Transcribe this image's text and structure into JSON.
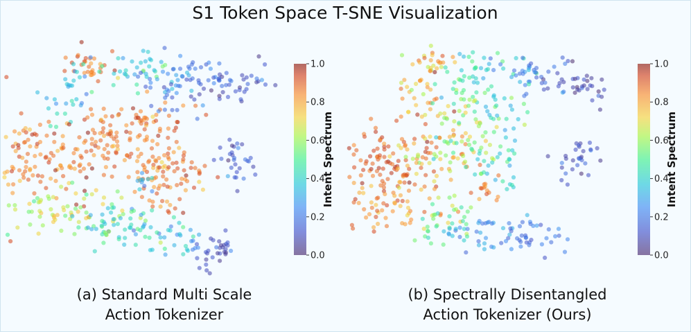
{
  "figure": {
    "title": "S1 Token Space T-SNE Visualization",
    "background": "#f5fbff",
    "border_color": "#cfe3ef"
  },
  "chart_data": [
    {
      "type": "scatter",
      "caption": [
        "(a) Standard Multi Scale",
        "Action Tokenizer"
      ],
      "xlabel": "",
      "ylabel": "",
      "axes_visible": false,
      "grid": false,
      "colorbar": {
        "label": "Intent Spectrum",
        "range": [
          0.0,
          1.0
        ],
        "ticks": [
          "0.0",
          "0.2",
          "0.4",
          "0.6",
          "0.8",
          "1.0"
        ],
        "colormap": "turbo"
      },
      "point_opacity": 0.55,
      "clusters": [
        {
          "cx": 0.13,
          "cy": 0.1,
          "sx": 0.06,
          "sy": 0.03,
          "n": 30,
          "mean": 0.88,
          "sd": 0.05
        },
        {
          "cx": 0.28,
          "cy": 0.12,
          "sx": 0.07,
          "sy": 0.04,
          "n": 30,
          "mean": 0.42,
          "sd": 0.12
        },
        {
          "cx": 0.48,
          "cy": 0.13,
          "sx": 0.07,
          "sy": 0.04,
          "n": 35,
          "mean": 0.2,
          "sd": 0.06
        },
        {
          "cx": 0.62,
          "cy": 0.18,
          "sx": 0.06,
          "sy": 0.04,
          "n": 35,
          "mean": 0.12,
          "sd": 0.05
        },
        {
          "cx": 0.38,
          "cy": 0.17,
          "sx": 0.06,
          "sy": 0.05,
          "n": 25,
          "mean": 0.3,
          "sd": 0.08
        },
        {
          "cx": 0.06,
          "cy": 0.22,
          "sx": 0.05,
          "sy": 0.06,
          "n": 30,
          "mean": 0.36,
          "sd": 0.07
        },
        {
          "cx": 0.3,
          "cy": 0.33,
          "sx": 0.1,
          "sy": 0.05,
          "n": 50,
          "mean": 0.88,
          "sd": 0.05
        },
        {
          "cx": 0.42,
          "cy": 0.25,
          "sx": 0.04,
          "sy": 0.04,
          "n": 15,
          "mean": 0.15,
          "sd": 0.05
        },
        {
          "cx": -0.02,
          "cy": 0.5,
          "sx": 0.14,
          "sy": 0.1,
          "n": 140,
          "mean": 0.86,
          "sd": 0.07
        },
        {
          "cx": 0.17,
          "cy": 0.45,
          "sx": 0.06,
          "sy": 0.05,
          "n": 30,
          "mean": 0.88,
          "sd": 0.05
        },
        {
          "cx": 0.3,
          "cy": 0.46,
          "sx": 0.07,
          "sy": 0.05,
          "n": 35,
          "mean": 0.86,
          "sd": 0.05
        },
        {
          "cx": 0.36,
          "cy": 0.56,
          "sx": 0.06,
          "sy": 0.05,
          "n": 30,
          "mean": 0.85,
          "sd": 0.06
        },
        {
          "cx": 0.47,
          "cy": 0.55,
          "sx": 0.04,
          "sy": 0.04,
          "n": 20,
          "mean": 0.88,
          "sd": 0.05
        },
        {
          "cx": 0.62,
          "cy": 0.52,
          "sx": 0.04,
          "sy": 0.05,
          "n": 30,
          "mean": 0.12,
          "sd": 0.05
        },
        {
          "cx": 0.02,
          "cy": 0.72,
          "sx": 0.1,
          "sy": 0.06,
          "n": 60,
          "mean": 0.62,
          "sd": 0.07
        },
        {
          "cx": 0.17,
          "cy": 0.78,
          "sx": 0.07,
          "sy": 0.05,
          "n": 35,
          "mean": 0.45,
          "sd": 0.12
        },
        {
          "cx": 0.3,
          "cy": 0.8,
          "sx": 0.07,
          "sy": 0.04,
          "n": 35,
          "mean": 0.4,
          "sd": 0.12
        },
        {
          "cx": 0.44,
          "cy": 0.84,
          "sx": 0.05,
          "sy": 0.04,
          "n": 25,
          "mean": 0.32,
          "sd": 0.08
        },
        {
          "cx": 0.55,
          "cy": 0.88,
          "sx": 0.04,
          "sy": 0.04,
          "n": 30,
          "mean": 0.08,
          "sd": 0.05
        },
        {
          "cx": 0.36,
          "cy": 0.66,
          "sx": 0.06,
          "sy": 0.05,
          "n": 25,
          "mean": 0.88,
          "sd": 0.05
        },
        {
          "cx": 0.3,
          "cy": 0.6,
          "sx": 0.03,
          "sy": 0.02,
          "n": 10,
          "mean": 0.3,
          "sd": 0.05
        }
      ]
    },
    {
      "type": "scatter",
      "caption": [
        "(b) Spectrally Disentangled",
        "Action Tokenizer (Ours)"
      ],
      "xlabel": "",
      "ylabel": "",
      "axes_visible": false,
      "grid": false,
      "colorbar": {
        "label": "Intent Spectrum",
        "range": [
          0.0,
          1.0
        ],
        "ticks": [
          "0.0",
          "0.2",
          "0.4",
          "0.6",
          "0.8",
          "1.0"
        ],
        "colormap": "turbo"
      },
      "point_opacity": 0.55,
      "clusters": [
        {
          "cx": 0.14,
          "cy": 0.1,
          "sx": 0.05,
          "sy": 0.03,
          "n": 25,
          "mean": 0.78,
          "sd": 0.12
        },
        {
          "cx": 0.3,
          "cy": 0.11,
          "sx": 0.06,
          "sy": 0.04,
          "n": 30,
          "mean": 0.4,
          "sd": 0.05
        },
        {
          "cx": 0.45,
          "cy": 0.14,
          "sx": 0.06,
          "sy": 0.04,
          "n": 35,
          "mean": 0.22,
          "sd": 0.05
        },
        {
          "cx": 0.62,
          "cy": 0.18,
          "sx": 0.05,
          "sy": 0.04,
          "n": 35,
          "mean": 0.08,
          "sd": 0.05
        },
        {
          "cx": 0.08,
          "cy": 0.22,
          "sx": 0.05,
          "sy": 0.06,
          "n": 30,
          "mean": 0.78,
          "sd": 0.08
        },
        {
          "cx": 0.22,
          "cy": 0.2,
          "sx": 0.05,
          "sy": 0.05,
          "n": 20,
          "mean": 0.5,
          "sd": 0.06
        },
        {
          "cx": 0.25,
          "cy": 0.33,
          "sx": 0.08,
          "sy": 0.05,
          "n": 35,
          "mean": 0.62,
          "sd": 0.1
        },
        {
          "cx": 0.38,
          "cy": 0.28,
          "sx": 0.05,
          "sy": 0.04,
          "n": 20,
          "mean": 0.4,
          "sd": 0.08
        },
        {
          "cx": -0.03,
          "cy": 0.5,
          "sx": 0.1,
          "sy": 0.09,
          "n": 110,
          "mean": 0.9,
          "sd": 0.05
        },
        {
          "cx": 0.12,
          "cy": 0.48,
          "sx": 0.06,
          "sy": 0.06,
          "n": 40,
          "mean": 0.75,
          "sd": 0.08
        },
        {
          "cx": 0.25,
          "cy": 0.45,
          "sx": 0.06,
          "sy": 0.05,
          "n": 35,
          "mean": 0.55,
          "sd": 0.08
        },
        {
          "cx": 0.35,
          "cy": 0.52,
          "sx": 0.05,
          "sy": 0.05,
          "n": 25,
          "mean": 0.4,
          "sd": 0.06
        },
        {
          "cx": 0.62,
          "cy": 0.52,
          "sx": 0.04,
          "sy": 0.05,
          "n": 30,
          "mean": 0.12,
          "sd": 0.05
        },
        {
          "cx": 0.0,
          "cy": 0.7,
          "sx": 0.09,
          "sy": 0.06,
          "n": 55,
          "mean": 0.82,
          "sd": 0.06
        },
        {
          "cx": 0.16,
          "cy": 0.77,
          "sx": 0.06,
          "sy": 0.05,
          "n": 35,
          "mean": 0.55,
          "sd": 0.08
        },
        {
          "cx": 0.3,
          "cy": 0.8,
          "sx": 0.07,
          "sy": 0.04,
          "n": 35,
          "mean": 0.3,
          "sd": 0.08
        },
        {
          "cx": 0.46,
          "cy": 0.84,
          "sx": 0.06,
          "sy": 0.04,
          "n": 35,
          "mean": 0.18,
          "sd": 0.05
        },
        {
          "cx": 0.3,
          "cy": 0.62,
          "sx": 0.04,
          "sy": 0.04,
          "n": 15,
          "mean": 0.88,
          "sd": 0.05
        }
      ]
    }
  ]
}
